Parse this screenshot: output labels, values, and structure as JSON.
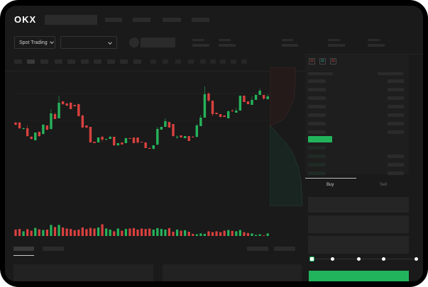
{
  "header": {
    "logo": "OKX"
  },
  "toolbar": {
    "market_selector": "Spot Trading"
  },
  "trade": {
    "tabs": [
      "Buy",
      "Sell"
    ],
    "active_tab": "Buy",
    "leverage_slider_value": 0
  },
  "colors": {
    "up": "#26b35a",
    "down": "#d9413f",
    "accent": "#22b45c",
    "background": "#1a1a1a"
  },
  "chart_data": {
    "type": "candlestick",
    "candles": [
      [
        "d",
        45,
        42,
        46,
        41
      ],
      [
        "d",
        45,
        37,
        46,
        36
      ],
      [
        "u",
        37,
        36,
        38,
        35
      ],
      [
        "d",
        37,
        26,
        41,
        25
      ],
      [
        "d",
        25,
        22,
        26,
        21
      ],
      [
        "u",
        31,
        20,
        31,
        20
      ],
      [
        "d",
        32,
        26,
        32,
        25
      ],
      [
        "u",
        42,
        29,
        43,
        28
      ],
      [
        "d",
        41,
        35,
        41,
        34
      ],
      [
        "u",
        58,
        36,
        64,
        35
      ],
      [
        "d",
        57,
        50,
        59,
        50
      ],
      [
        "u",
        73,
        51,
        83,
        51
      ],
      [
        "d",
        75,
        71,
        75,
        70
      ],
      [
        "d",
        72,
        69,
        73,
        68
      ],
      [
        "d",
        73,
        64,
        74,
        64
      ],
      [
        "d",
        70,
        68,
        70,
        68
      ],
      [
        "d",
        71,
        54,
        72,
        54
      ],
      [
        "d",
        55,
        38,
        56,
        38
      ],
      [
        "d",
        41,
        38,
        41,
        37
      ],
      [
        "d",
        39,
        17,
        39,
        17
      ],
      [
        "d",
        18,
        16,
        18,
        16
      ],
      [
        "u",
        24,
        17,
        24,
        17
      ],
      [
        "d",
        25,
        21,
        26,
        18
      ],
      [
        "u",
        22,
        21,
        22,
        20
      ],
      [
        "u",
        25,
        22,
        26,
        22
      ],
      [
        "d",
        25,
        13,
        25,
        12
      ],
      [
        "u",
        16,
        13,
        16,
        12
      ],
      [
        "d",
        17,
        14,
        17,
        14
      ],
      [
        "u",
        23,
        16,
        24,
        16
      ],
      [
        "d",
        23,
        22,
        24,
        22
      ],
      [
        "d",
        24,
        16,
        24,
        16
      ],
      [
        "d",
        24,
        17,
        24,
        15
      ],
      [
        "d",
        18,
        17,
        18,
        17
      ],
      [
        "d",
        17,
        9,
        17,
        9
      ],
      [
        "d",
        9,
        8,
        10,
        8
      ],
      [
        "u",
        13,
        8,
        13,
        7
      ],
      [
        "u",
        36,
        14,
        39,
        13
      ],
      [
        "u",
        39,
        35,
        39,
        35
      ],
      [
        "u",
        47,
        39,
        51,
        39
      ],
      [
        "d",
        46,
        38,
        46,
        38
      ],
      [
        "d",
        43,
        26,
        43,
        25
      ],
      [
        "u",
        25,
        24,
        27,
        22
      ],
      [
        "d",
        27,
        24,
        27,
        24
      ],
      [
        "u",
        26,
        23,
        26,
        23
      ],
      [
        "d",
        26,
        19,
        26,
        19
      ],
      [
        "d",
        25,
        24,
        26,
        24
      ],
      [
        "u",
        41,
        25,
        43,
        24
      ],
      [
        "u",
        52,
        40,
        56,
        40
      ],
      [
        "u",
        85,
        52,
        96,
        52
      ],
      [
        "d",
        86,
        76,
        88,
        74
      ],
      [
        "d",
        76,
        57,
        76,
        54
      ],
      [
        "d",
        59,
        57,
        59,
        56
      ],
      [
        "d",
        57,
        53,
        57,
        52
      ],
      [
        "d",
        55,
        53,
        55,
        53
      ],
      [
        "u",
        61,
        51,
        62,
        51
      ],
      [
        "d",
        62,
        61,
        64,
        60
      ],
      [
        "u",
        62,
        59,
        66,
        59
      ],
      [
        "u",
        83,
        62,
        83,
        62
      ],
      [
        "d",
        83,
        74,
        83,
        74
      ],
      [
        "d",
        75,
        71,
        75,
        71
      ],
      [
        "u",
        77,
        70,
        82,
        70
      ],
      [
        "u",
        84,
        77,
        85,
        77
      ],
      [
        "u",
        90,
        84,
        93,
        84
      ],
      [
        "d",
        84,
        79,
        84,
        77
      ],
      [
        "u",
        82,
        78,
        85,
        78
      ]
    ],
    "volumes": [
      30,
      33,
      22,
      32,
      25,
      38,
      31,
      28,
      30,
      52,
      42,
      52,
      40,
      35,
      33,
      27,
      30,
      40,
      32,
      38,
      35,
      40,
      55,
      35,
      30,
      22,
      35,
      25,
      33,
      35,
      37,
      30,
      35,
      33,
      35,
      30,
      37,
      33,
      30,
      37,
      20,
      30,
      25,
      27,
      20,
      10,
      8,
      12,
      10,
      22,
      18,
      22,
      18,
      25,
      28,
      24,
      22,
      28,
      18,
      14,
      12,
      5,
      8,
      3,
      12
    ]
  }
}
